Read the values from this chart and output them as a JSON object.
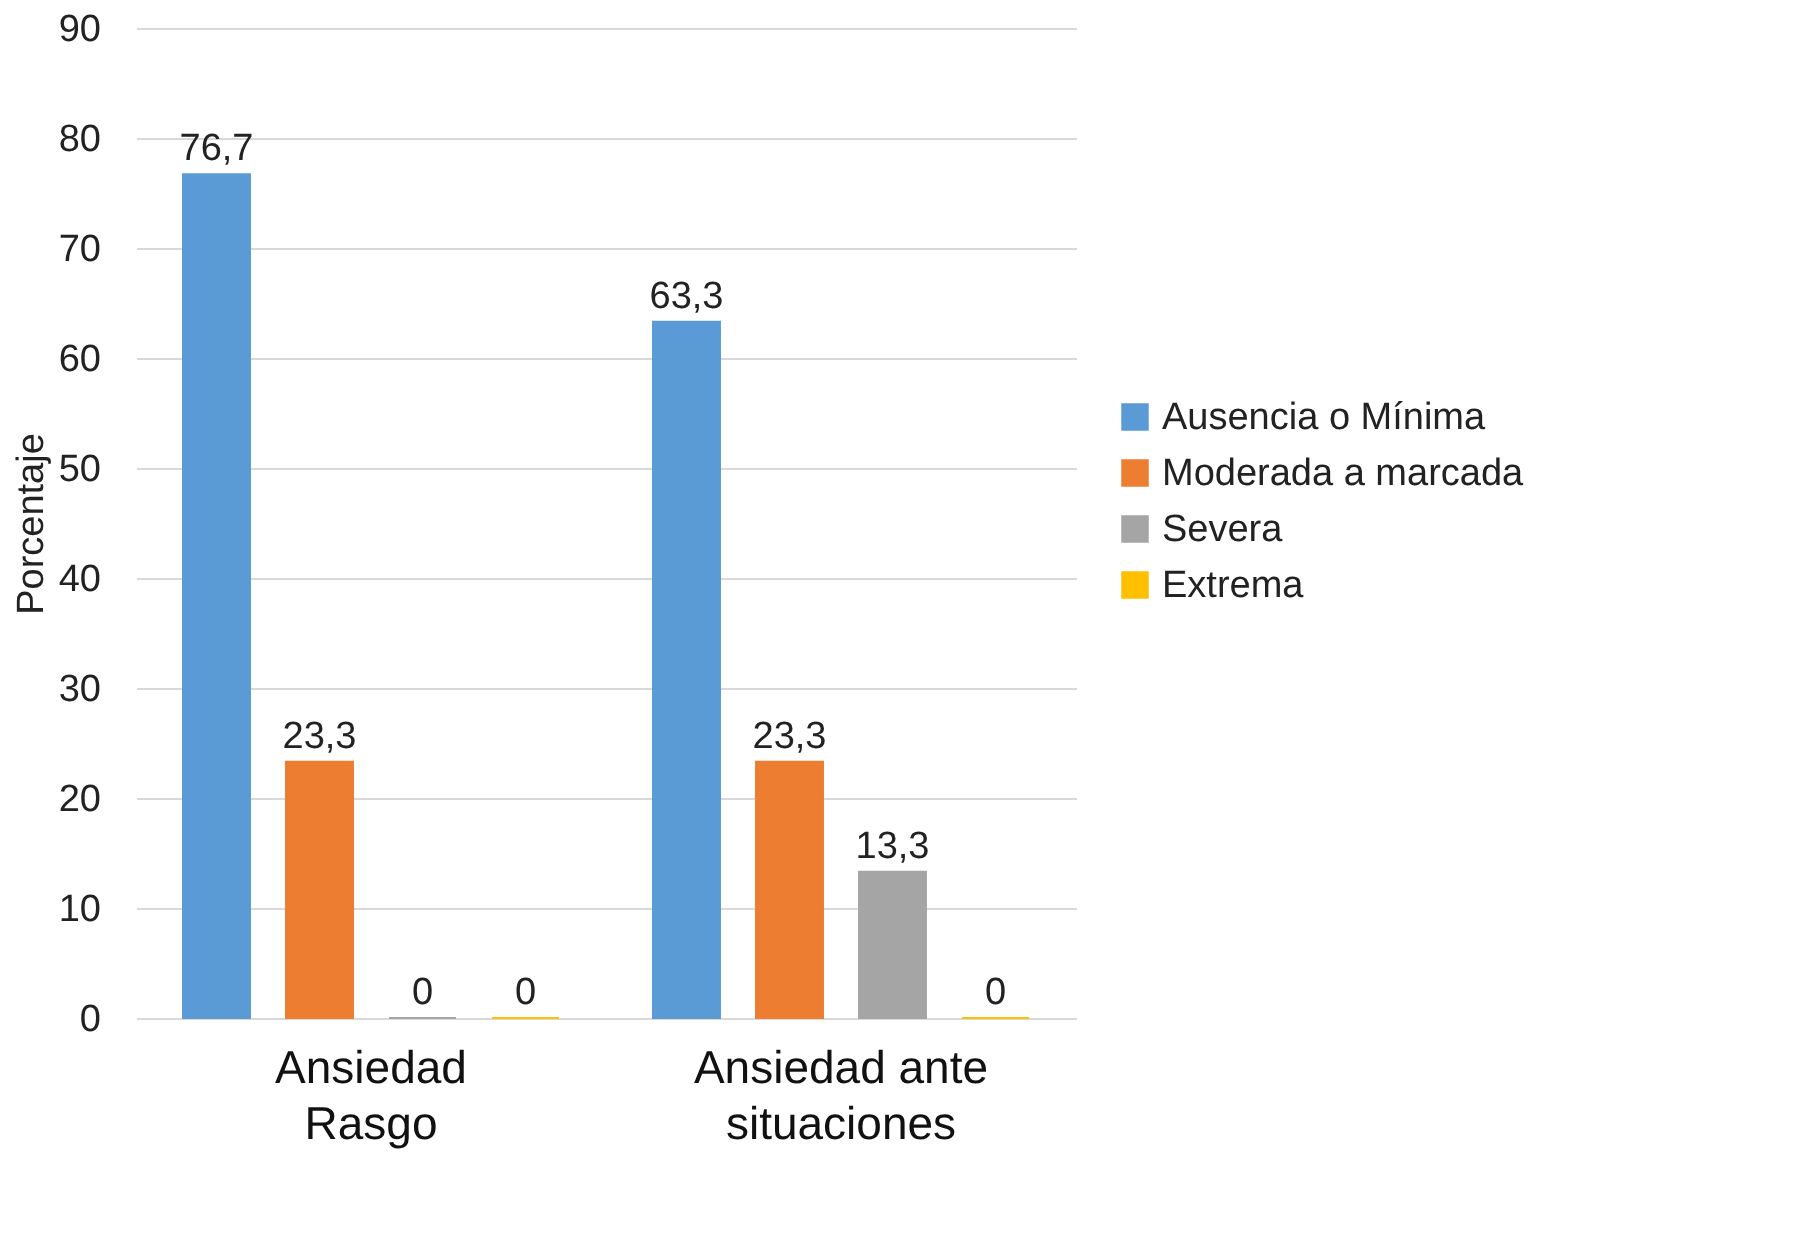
{
  "chart_data": {
    "type": "bar",
    "ylabel": "Porcentaje",
    "categories": [
      "Ansiedad Rasgo",
      "Ansiedad ante situaciones"
    ],
    "series": [
      {
        "name": "Ausencia o Mínima",
        "color": "#5b9bd5",
        "values": [
          76.7,
          63.3
        ],
        "value_labels": [
          "76,7",
          "63,3"
        ]
      },
      {
        "name": "Moderada a marcada",
        "color": "#ed7d31",
        "values": [
          23.3,
          23.3
        ],
        "value_labels": [
          "23,3",
          "23,3"
        ]
      },
      {
        "name": "Severa",
        "color": "#a5a5a5",
        "values": [
          0,
          13.3
        ],
        "value_labels": [
          "0",
          "13,3"
        ]
      },
      {
        "name": "Extrema",
        "color": "#ffc000",
        "values": [
          0,
          0
        ],
        "value_labels": [
          "0",
          "0"
        ]
      }
    ],
    "ylim": [
      0,
      90
    ],
    "yticks": [
      0,
      10,
      20,
      30,
      40,
      50,
      60,
      70,
      80,
      90
    ],
    "grid": "y",
    "legend": "right"
  }
}
